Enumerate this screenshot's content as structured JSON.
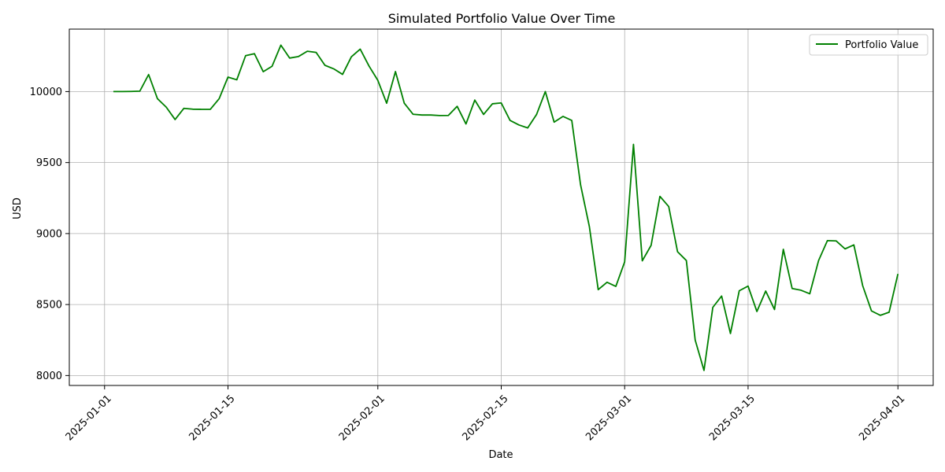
{
  "chart_data": {
    "type": "line",
    "title": "Simulated Portfolio Value Over Time",
    "xlabel": "Date",
    "ylabel": "USD",
    "x_start": "2025-01-02",
    "xlim": [
      "2024-12-28",
      "2025-04-05"
    ],
    "ylim": [
      7930,
      10440
    ],
    "x_ticks": [
      "2025-01-01",
      "2025-01-15",
      "2025-02-01",
      "2025-02-15",
      "2025-03-01",
      "2025-03-15",
      "2025-04-01"
    ],
    "y_ticks": [
      8000,
      8500,
      9000,
      9500,
      10000
    ],
    "grid": true,
    "legend": "top-right",
    "series": [
      {
        "name": "Portfolio Value",
        "color": "#008000",
        "values": [
          10000,
          10000,
          10001,
          10003,
          10120,
          9950,
          9890,
          9803,
          9882,
          9876,
          9875,
          9875,
          9950,
          10102,
          10083,
          10253,
          10267,
          10140,
          10178,
          10327,
          10236,
          10247,
          10284,
          10276,
          10185,
          10160,
          10121,
          10245,
          10299,
          10180,
          10079,
          9918,
          10141,
          9918,
          9840,
          9835,
          9835,
          9831,
          9832,
          9896,
          9772,
          9940,
          9839,
          9914,
          9920,
          9797,
          9765,
          9744,
          9838,
          10000,
          9785,
          9825,
          9797,
          9343,
          9048,
          8605,
          8657,
          8628,
          8800,
          9628,
          8808,
          8917,
          9262,
          9190,
          8872,
          8810,
          8250,
          8036,
          8480,
          8560,
          8296,
          8597,
          8630,
          8451,
          8595,
          8465,
          8889,
          8613,
          8601,
          8576,
          8810,
          8950,
          8948,
          8892,
          8920,
          8633,
          8455,
          8424,
          8446,
          8716
        ]
      }
    ]
  }
}
